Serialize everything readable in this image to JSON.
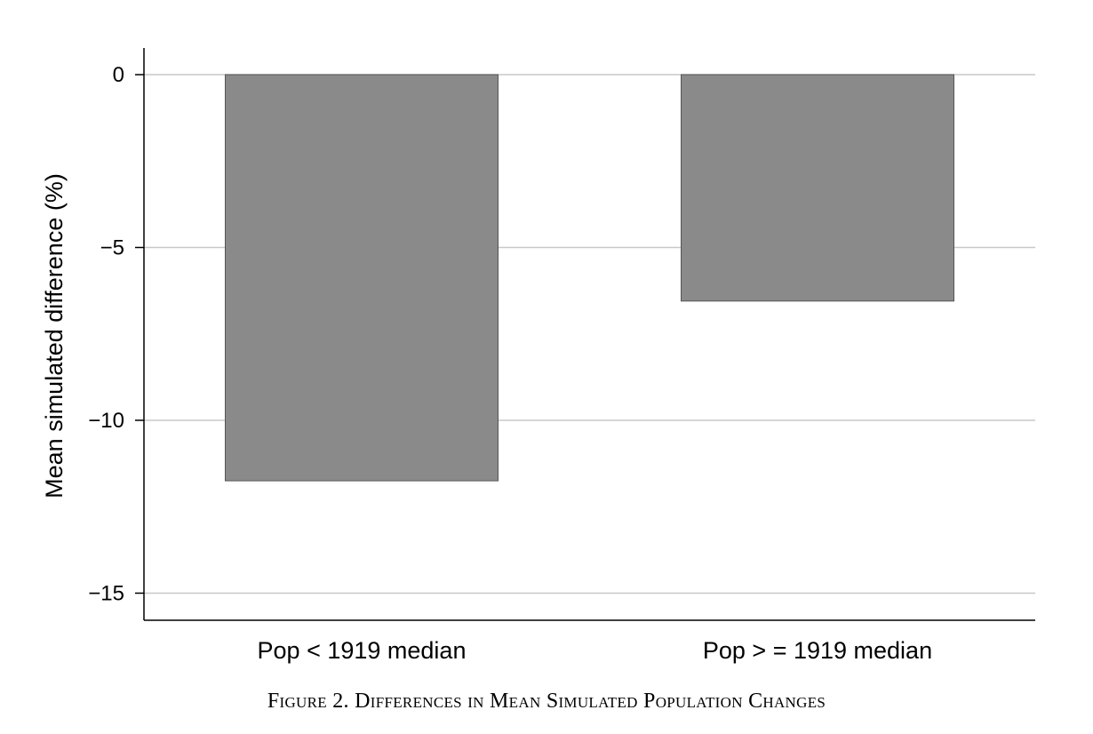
{
  "chart_data": {
    "type": "bar",
    "categories": [
      "Pop < 1919 median",
      "Pop > = 1919 median"
    ],
    "values": [
      -11.75,
      -6.55
    ],
    "title": "",
    "xlabel": "",
    "ylabel": "Mean simulated difference (%)",
    "ylim": [
      -15.8,
      0.75
    ],
    "yticks": [
      0,
      -5,
      -10,
      -15
    ],
    "ytick_labels": [
      "0",
      "−5",
      "−10",
      "−15"
    ],
    "grid": "horizontal",
    "bar_color": "#8a8a8a",
    "grid_color": "#c8c8c8"
  },
  "caption": "Figure 2. Differences in Mean Simulated Population Changes"
}
